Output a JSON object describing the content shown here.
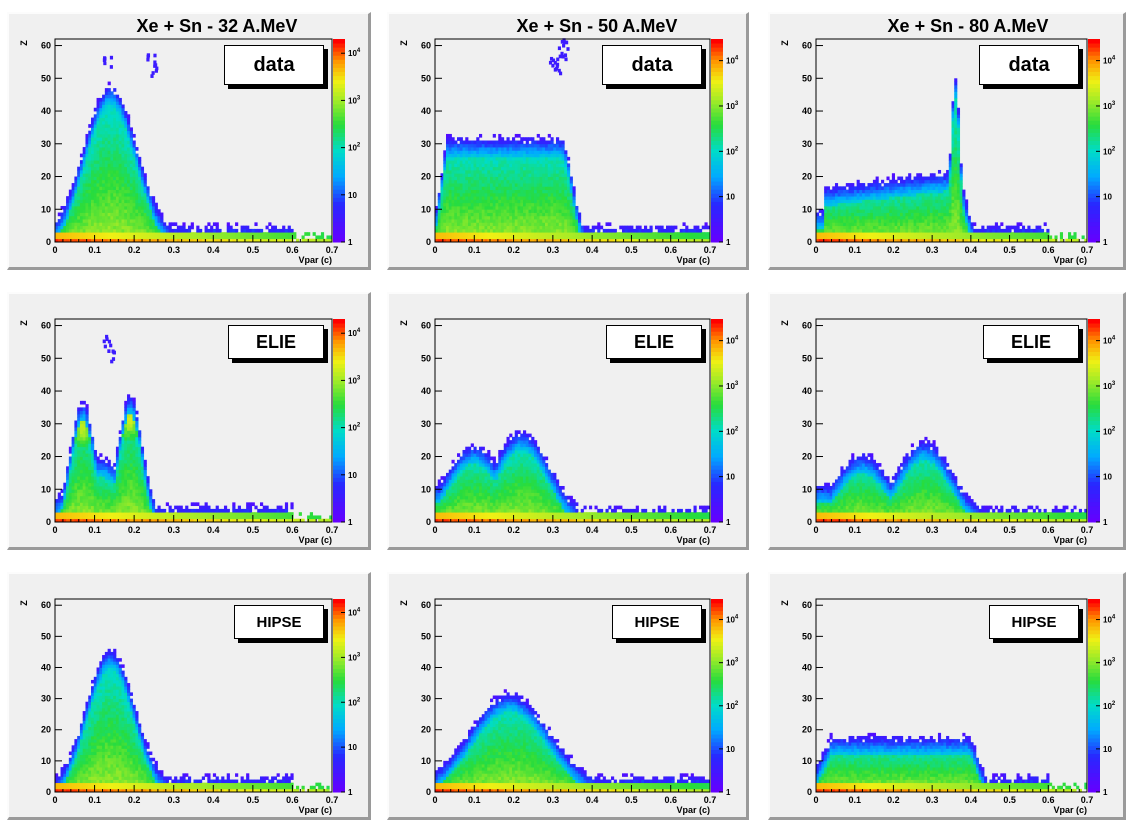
{
  "column_titles": [
    "Xe + Sn - 32 A.MeV",
    "Xe + Sn - 50 A.MeV",
    "Xe + Sn - 80 A.MeV"
  ],
  "chart_data": [
    {
      "type": "heatmap",
      "panel": "row1-col1",
      "label": "data",
      "title": "Xe + Sn - 32 A.MeV",
      "xlabel": "Vpar (c)",
      "ylabel": "Z",
      "xlim": [
        0,
        0.7
      ],
      "ylim": [
        0,
        62
      ],
      "x_ticks": [
        "0",
        "0.1",
        "0.2",
        "0.3",
        "0.4",
        "0.5",
        "0.6",
        "0.7"
      ],
      "y_ticks": [
        "0",
        "10",
        "20",
        "30",
        "40",
        "50",
        "60"
      ],
      "colorbar_ticks": [
        "1",
        "10",
        "10^2",
        "10^3",
        "10^4"
      ],
      "colorscale": "log",
      "zmax": 20000,
      "shape": "bump",
      "peak": {
        "x": 0.14,
        "z": 46,
        "width": 0.065
      },
      "tail_to_x": 0.6,
      "outliers": [
        {
          "x": 0.13,
          "z": 55
        },
        {
          "x": 0.24,
          "z": 55
        },
        {
          "x": 0.25,
          "z": 52
        }
      ]
    },
    {
      "type": "heatmap",
      "panel": "row1-col2",
      "label": "data",
      "title": "Xe + Sn - 50 A.MeV",
      "xlabel": "Vpar (c)",
      "ylabel": "Z",
      "xlim": [
        0,
        0.7
      ],
      "ylim": [
        0,
        62
      ],
      "x_ticks": [
        "0",
        "0.1",
        "0.2",
        "0.3",
        "0.4",
        "0.5",
        "0.6",
        "0.7"
      ],
      "y_ticks": [
        "0",
        "10",
        "20",
        "30",
        "40",
        "50",
        "60"
      ],
      "colorbar_ticks": [
        "1",
        "10",
        "10^2",
        "10^3",
        "10^4"
      ],
      "colorscale": "log",
      "zmax": 30000,
      "shape": "plateau",
      "plateau": {
        "x0": 0.03,
        "x1": 0.32,
        "z": 30
      },
      "tail_to_x": 0.7,
      "outliers": [
        {
          "x": 0.3,
          "z": 55
        },
        {
          "x": 0.31,
          "z": 52
        },
        {
          "x": 0.32,
          "z": 57
        },
        {
          "x": 0.33,
          "z": 60
        }
      ]
    },
    {
      "type": "heatmap",
      "panel": "row1-col3",
      "label": "data",
      "title": "Xe + Sn - 80 A.MeV",
      "xlabel": "Vpar (c)",
      "ylabel": "Z",
      "xlim": [
        0,
        0.7
      ],
      "ylim": [
        0,
        62
      ],
      "x_ticks": [
        "0",
        "0.1",
        "0.2",
        "0.3",
        "0.4",
        "0.5",
        "0.6",
        "0.7"
      ],
      "y_ticks": [
        "0",
        "10",
        "20",
        "30",
        "40",
        "50",
        "60"
      ],
      "colorbar_ticks": [
        "1",
        "10",
        "10^2",
        "10^3",
        "10^4"
      ],
      "colorscale": "log",
      "zmax": 30000,
      "shape": "plateau-spike",
      "plateau": {
        "x0": 0.02,
        "x1": 0.36,
        "z": 20
      },
      "spike": {
        "x": 0.36,
        "z": 48
      },
      "tail_to_x": 0.6
    },
    {
      "type": "heatmap",
      "panel": "row2-col1",
      "label": "ELIE",
      "xlabel": "Vpar (c)",
      "ylabel": "Z",
      "xlim": [
        0,
        0.7
      ],
      "ylim": [
        0,
        62
      ],
      "x_ticks": [
        "0",
        "0.1",
        "0.2",
        "0.3",
        "0.4",
        "0.5",
        "0.6",
        "0.7"
      ],
      "y_ticks": [
        "0",
        "10",
        "20",
        "30",
        "40",
        "50",
        "60"
      ],
      "colorbar_ticks": [
        "1",
        "10",
        "10^2",
        "10^3",
        "10^4"
      ],
      "colorscale": "log",
      "zmax": 20000,
      "shape": "two-blobs",
      "blobs": [
        {
          "x": 0.07,
          "z": 29
        },
        {
          "x": 0.19,
          "z": 31
        }
      ],
      "tail_to_x": 0.6,
      "outliers": [
        {
          "x": 0.13,
          "z": 55
        },
        {
          "x": 0.14,
          "z": 50
        }
      ]
    },
    {
      "type": "heatmap",
      "panel": "row2-col2",
      "label": "ELIE",
      "xlabel": "Vpar (c)",
      "ylabel": "Z",
      "xlim": [
        0,
        0.7
      ],
      "ylim": [
        0,
        62
      ],
      "x_ticks": [
        "0",
        "0.1",
        "0.2",
        "0.3",
        "0.4",
        "0.5",
        "0.6",
        "0.7"
      ],
      "y_ticks": [
        "0",
        "10",
        "20",
        "30",
        "40",
        "50",
        "60"
      ],
      "colorbar_ticks": [
        "1",
        "10",
        "10^2",
        "10^3",
        "10^4"
      ],
      "colorscale": "log",
      "zmax": 30000,
      "shape": "double-hump",
      "humps": [
        {
          "x": 0.1,
          "z": 22
        },
        {
          "x": 0.22,
          "z": 26
        }
      ],
      "tail_to_x": 0.7
    },
    {
      "type": "heatmap",
      "panel": "row2-col3",
      "label": "ELIE",
      "xlabel": "Vpar (c)",
      "ylabel": "Z",
      "xlim": [
        0,
        0.7
      ],
      "ylim": [
        0,
        62
      ],
      "x_ticks": [
        "0",
        "0.1",
        "0.2",
        "0.3",
        "0.4",
        "0.5",
        "0.6",
        "0.7"
      ],
      "y_ticks": [
        "0",
        "10",
        "20",
        "30",
        "40",
        "50",
        "60"
      ],
      "colorbar_ticks": [
        "1",
        "10",
        "10^2",
        "10^3",
        "10^4"
      ],
      "colorscale": "log",
      "zmax": 30000,
      "shape": "double-hump",
      "humps": [
        {
          "x": 0.12,
          "z": 19
        },
        {
          "x": 0.28,
          "z": 23
        }
      ],
      "tail_to_x": 0.7
    },
    {
      "type": "heatmap",
      "panel": "row3-col1",
      "label": "HIPSE",
      "xlabel": "Vpar (c)",
      "ylabel": "Z",
      "xlim": [
        0,
        0.7
      ],
      "ylim": [
        0,
        62
      ],
      "x_ticks": [
        "0",
        "0.1",
        "0.2",
        "0.3",
        "0.4",
        "0.5",
        "0.6",
        "0.7"
      ],
      "y_ticks": [
        "0",
        "10",
        "20",
        "30",
        "40",
        "50",
        "60"
      ],
      "colorbar_ticks": [
        "1",
        "10",
        "10^2",
        "10^3",
        "10^4"
      ],
      "colorscale": "log",
      "zmax": 20000,
      "shape": "bump",
      "peak": {
        "x": 0.14,
        "z": 44,
        "width": 0.06
      },
      "tail_to_x": 0.6
    },
    {
      "type": "heatmap",
      "panel": "row3-col2",
      "label": "HIPSE",
      "xlabel": "Vpar (c)",
      "ylabel": "Z",
      "xlim": [
        0,
        0.7
      ],
      "ylim": [
        0,
        62
      ],
      "x_ticks": [
        "0",
        "0.1",
        "0.2",
        "0.3",
        "0.4",
        "0.5",
        "0.6",
        "0.7"
      ],
      "y_ticks": [
        "0",
        "10",
        "20",
        "30",
        "40",
        "50",
        "60"
      ],
      "colorbar_ticks": [
        "1",
        "10",
        "10^2",
        "10^3",
        "10^4"
      ],
      "colorscale": "log",
      "zmax": 30000,
      "shape": "bump",
      "peak": {
        "x": 0.19,
        "z": 30,
        "width": 0.1
      },
      "tail_to_x": 0.7
    },
    {
      "type": "heatmap",
      "panel": "row3-col3",
      "label": "HIPSE",
      "xlabel": "Vpar (c)",
      "ylabel": "Z",
      "xlim": [
        0,
        0.7
      ],
      "ylim": [
        0,
        62
      ],
      "x_ticks": [
        "0",
        "0.1",
        "0.2",
        "0.3",
        "0.4",
        "0.5",
        "0.6",
        "0.7"
      ],
      "y_ticks": [
        "0",
        "10",
        "20",
        "30",
        "40",
        "50",
        "60"
      ],
      "colorbar_ticks": [
        "1",
        "10",
        "10^2",
        "10^3",
        "10^4"
      ],
      "colorscale": "log",
      "zmax": 30000,
      "shape": "plateau",
      "plateau": {
        "x0": 0.04,
        "x1": 0.39,
        "z": 16
      },
      "tail_to_x": 0.6
    }
  ]
}
